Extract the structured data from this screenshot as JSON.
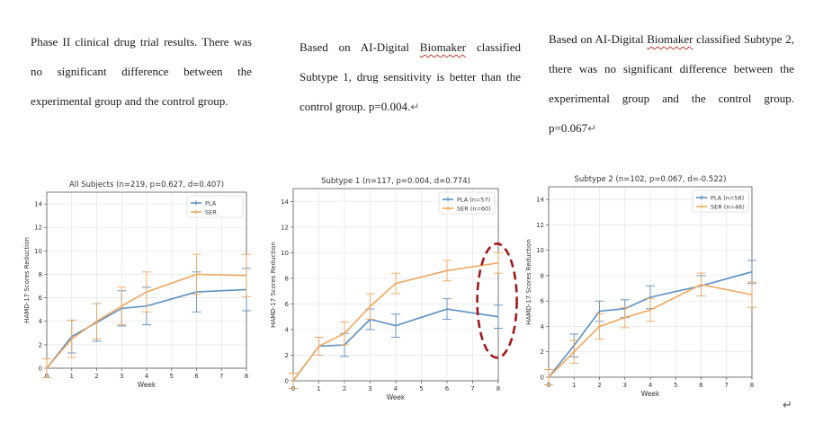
{
  "paragraphs": [
    {
      "text": "Phase II clinical drug trial results. There was no significant difference between the experimental group and the control group.",
      "pre": "",
      "mark": "",
      "post": "",
      "end": ""
    },
    {
      "pre": "Based on AI-Digital ",
      "mark": "Biomaker",
      "post": " classified Subtype 1, drug sensitivity is better than the control group. p=0.004.",
      "end": "↵"
    },
    {
      "pre": "Based on AI-Digital ",
      "mark": "Biomaker",
      "post": " classified Subtype 2, there was no significant difference between the experimental group and the control group. p=0.067",
      "end": "↵"
    }
  ],
  "end_mark": "↵",
  "chart_data": [
    {
      "type": "line",
      "title": "All Subjects (n=219, p=0.627, d=0.407)",
      "xlabel": "Week",
      "ylabel": "HAMD-17 Scores Reduction",
      "xlim": [
        0,
        8
      ],
      "ylim": [
        0,
        15
      ],
      "xticks": [
        "0",
        "1",
        "2",
        "3",
        "4",
        "5",
        "6",
        "7",
        "8"
      ],
      "yticks": [
        "0",
        "2",
        "4",
        "6",
        "8",
        "10",
        "12",
        "14"
      ],
      "legend": "top-right",
      "series": [
        {
          "name": "PLA",
          "color": "#5b8fc2",
          "x": [
            0,
            1,
            2,
            3,
            4,
            6,
            8
          ],
          "y": [
            0,
            2.7,
            3.9,
            5.1,
            5.3,
            6.5,
            6.7
          ],
          "err": [
            0.8,
            1.4,
            1.6,
            1.5,
            1.6,
            1.7,
            1.8
          ]
        },
        {
          "name": "SER",
          "color": "#f0a860",
          "x": [
            0,
            1,
            2,
            3,
            4,
            6,
            8
          ],
          "y": [
            0,
            2.5,
            4.0,
            5.3,
            6.5,
            8.0,
            7.9
          ],
          "err": [
            0.8,
            1.6,
            1.5,
            1.6,
            1.7,
            1.7,
            1.8
          ]
        }
      ]
    },
    {
      "type": "line",
      "title": "Subtype 1 (n=117, p=0.004, d=0.774)",
      "xlabel": "Week",
      "ylabel": "HAMD-17 Scores Reduction",
      "xlim": [
        0,
        8
      ],
      "ylim": [
        0,
        15
      ],
      "xticks": [
        "0",
        "1",
        "2",
        "3",
        "4",
        "5",
        "6",
        "7",
        "8"
      ],
      "yticks": [
        "0",
        "2",
        "4",
        "6",
        "8",
        "10",
        "12",
        "14"
      ],
      "legend": "top-right",
      "annotation": "dashed red ellipse around week 8",
      "series": [
        {
          "name": "PLA (n=57)",
          "color": "#5b8fc2",
          "x": [
            0,
            1,
            2,
            3,
            4,
            6,
            8
          ],
          "y": [
            0,
            2.7,
            2.8,
            4.8,
            4.3,
            5.6,
            5.0
          ],
          "err": [
            0.6,
            0.7,
            0.9,
            0.8,
            0.9,
            0.8,
            0.9
          ]
        },
        {
          "name": "SER (n=60)",
          "color": "#f0a860",
          "x": [
            0,
            1,
            2,
            3,
            4,
            6,
            8
          ],
          "y": [
            0,
            2.7,
            3.7,
            5.8,
            7.6,
            8.6,
            9.2
          ],
          "err": [
            0.6,
            0.7,
            0.9,
            1.0,
            0.8,
            0.8,
            0.8
          ]
        }
      ]
    },
    {
      "type": "line",
      "title": "Subtype 2 (n=102, p=0.067, d=-0.522)",
      "xlabel": "Week",
      "ylabel": "HAMD-17 Scores Reduction",
      "xlim": [
        0,
        8
      ],
      "ylim": [
        0,
        15
      ],
      "xticks": [
        "0",
        "1",
        "2",
        "3",
        "4",
        "5",
        "6",
        "7",
        "8"
      ],
      "yticks": [
        "0",
        "2",
        "4",
        "6",
        "8",
        "10",
        "12",
        "14"
      ],
      "legend": "top-right",
      "series": [
        {
          "name": "PLA (n=56)",
          "color": "#5b8fc2",
          "x": [
            0,
            1,
            2,
            3,
            4,
            6,
            8
          ],
          "y": [
            0,
            2.5,
            5.2,
            5.4,
            6.3,
            7.2,
            8.3
          ],
          "err": [
            0.6,
            0.9,
            0.8,
            0.7,
            0.9,
            0.8,
            0.9
          ]
        },
        {
          "name": "SER (n=46)",
          "color": "#f0a860",
          "x": [
            0,
            1,
            2,
            3,
            4,
            6,
            8
          ],
          "y": [
            0,
            2.0,
            4.0,
            4.7,
            5.3,
            7.3,
            6.5
          ],
          "err": [
            0.6,
            0.9,
            1.0,
            0.8,
            0.9,
            0.9,
            1.0
          ]
        }
      ]
    }
  ]
}
